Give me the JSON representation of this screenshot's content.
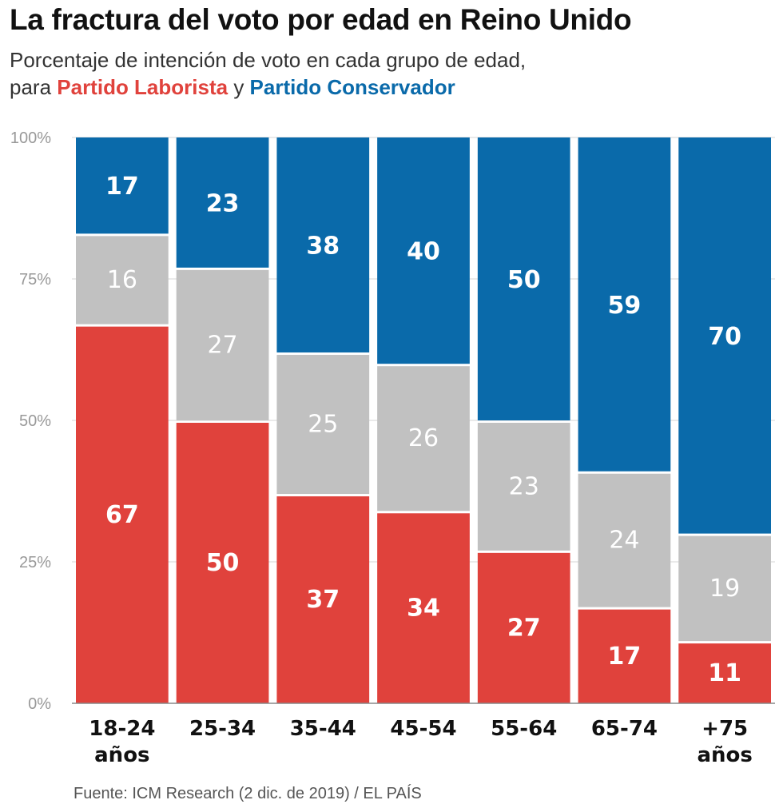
{
  "title": "La fractura del voto por edad en Reino Unido",
  "subtitle": {
    "line1": "Porcentaje de intención de voto en cada grupo de edad,",
    "prefix": "para ",
    "labour": "Partido Laborista",
    "connector": " y ",
    "conservative": "Partido Conservador"
  },
  "source": "Fuente: ICM Research (2 dic. de 2019) / EL PAÍS",
  "colors": {
    "labour": "#e0423c",
    "other": "#c1c1c1",
    "conservative": "#0a6aaa"
  },
  "chart_data": {
    "type": "bar",
    "stacked": true,
    "title": "La fractura del voto por edad en Reino Unido",
    "categories": [
      [
        "18-24",
        "años"
      ],
      [
        "25-34"
      ],
      [
        "35-44"
      ],
      [
        "45-54"
      ],
      [
        "55-64"
      ],
      [
        "65-74"
      ],
      [
        "+75",
        "años"
      ]
    ],
    "series": [
      {
        "name": "Partido Laborista",
        "key": "labour",
        "values": [
          67,
          50,
          37,
          34,
          27,
          17,
          11
        ]
      },
      {
        "key": "other",
        "values": [
          16,
          27,
          25,
          26,
          23,
          24,
          19
        ]
      },
      {
        "name": "Partido Conservador",
        "key": "conservative",
        "values": [
          17,
          23,
          38,
          40,
          50,
          59,
          70
        ]
      }
    ],
    "yticks": [
      "0%",
      "25%",
      "50%",
      "75%",
      "100%"
    ],
    "ylim": [
      0,
      100
    ],
    "grid": true
  }
}
